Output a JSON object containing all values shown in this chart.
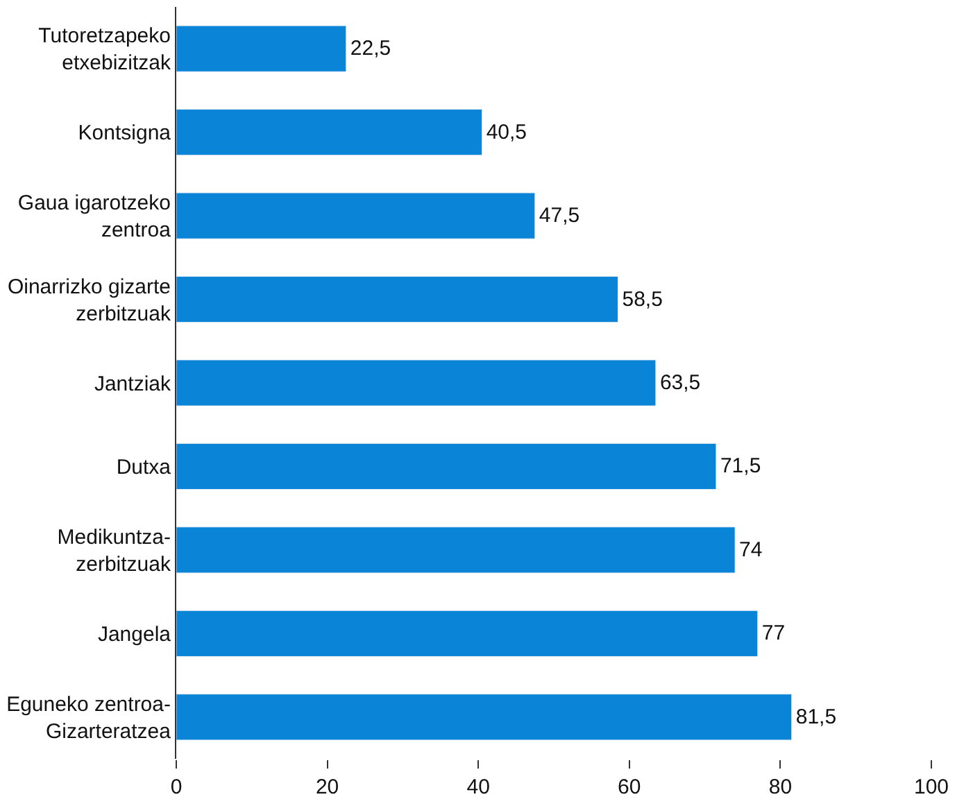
{
  "chart_data": {
    "type": "bar",
    "orientation": "horizontal",
    "categories": [
      "Tutoretzapeko\netxebizitzak",
      "Kontsigna",
      "Gaua igarotzeko\nzentroa",
      "Oinarrizko gizarte\nzerbitzuak",
      "Jantziak",
      "Dutxa",
      "Medikuntza-\nzerbitzuak",
      "Jangela",
      "Eguneko zentroa-\nGizarteratzea"
    ],
    "values": [
      22.5,
      40.5,
      47.5,
      58.5,
      63.5,
      71.5,
      74,
      77,
      81.5
    ],
    "value_labels": [
      "22,5",
      "40,5",
      "47,5",
      "58,5",
      "63,5",
      "71,5",
      "74",
      "77",
      "81,5"
    ],
    "color": "#0a84d6",
    "xlim": [
      0,
      100
    ],
    "xticks": [
      0,
      20,
      40,
      60,
      80,
      100
    ]
  }
}
